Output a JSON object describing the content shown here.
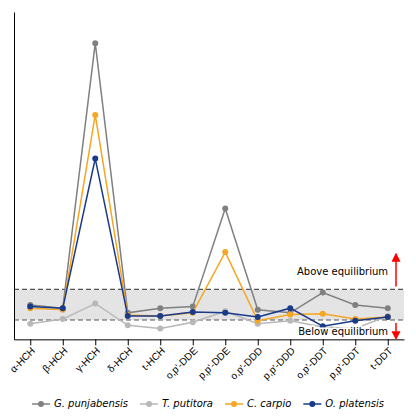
{
  "chart_data": {
    "type": "line",
    "categories": [
      "α-HCH",
      "β-HCH",
      "γ-HCH",
      "δ-HCH",
      "t-HCH",
      "o,p'-DDE",
      "p,p'-DDE",
      "o,p'-DDD",
      "p,p'-DDD",
      "o,p'-DDT",
      "p,p'-DDT",
      "t-DDT"
    ],
    "series": [
      {
        "name": "G. punjabensis",
        "color": "#808080",
        "marker": "circle",
        "values": [
          1.1,
          1.0,
          9.5,
          0.85,
          1.0,
          1.05,
          4.2,
          0.95,
          0.85,
          1.5,
          1.1,
          1.0
        ]
      },
      {
        "name": "T. putitora",
        "color": "#b8b8b8",
        "marker": "circle",
        "values": [
          0.5,
          0.65,
          1.15,
          0.45,
          0.35,
          0.55,
          0.9,
          0.5,
          0.6,
          0.4,
          0.35,
          0.75
        ]
      },
      {
        "name": "C. carpio",
        "color": "#f5a623",
        "marker": "circle",
        "values": [
          1.0,
          0.95,
          7.2,
          0.78,
          0.75,
          0.85,
          2.8,
          0.6,
          0.8,
          0.82,
          0.65,
          0.72
        ]
      },
      {
        "name": "O. platensis",
        "color": "#1a3a8a",
        "marker": "circle",
        "values": [
          1.05,
          1.0,
          5.8,
          0.75,
          0.75,
          0.88,
          0.85,
          0.72,
          1.0,
          0.42,
          0.6,
          0.72
        ]
      }
    ],
    "ylim": [
      0,
      10.5
    ],
    "yticks": [],
    "tick_labels": "x",
    "grid": false,
    "legend": "bottom",
    "band": {
      "lower": 0.62,
      "upper": 1.6,
      "color": "#e4e4e4",
      "line_color": "#555555",
      "line_style": "dashed"
    },
    "annotations": [
      {
        "text": "Above equilibrium",
        "direction": "up",
        "arrow_color": "red"
      },
      {
        "text": "Below equilibrium",
        "direction": "down",
        "arrow_color": "red"
      }
    ],
    "background_color": "#ffffff"
  }
}
